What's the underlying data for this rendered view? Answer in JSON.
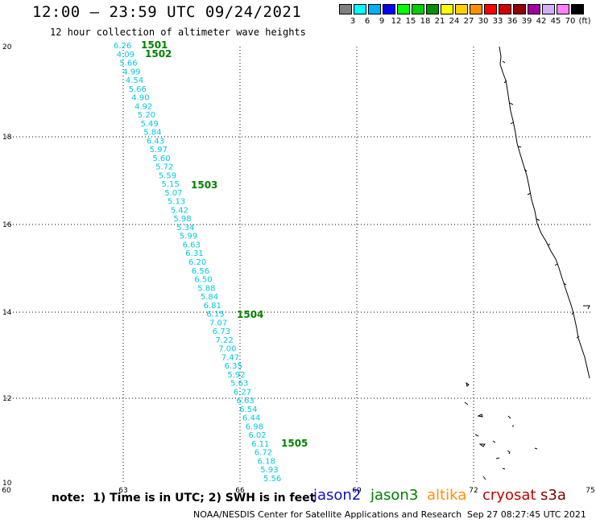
{
  "title": "12:00 – 23:59 UTC 09/24/2021",
  "subtitle": "12 hour collection of altimeter wave heights",
  "legend": {
    "labels": [
      "3",
      "6",
      "9",
      "12",
      "15",
      "18",
      "21",
      "24",
      "27",
      "30",
      "33",
      "36",
      "39",
      "42",
      "45",
      "70",
      "(ft)"
    ],
    "colors": [
      "#808080",
      "#00ffff",
      "#00b0ff",
      "#0000ff",
      "#00ff00",
      "#00d000",
      "#009000",
      "#ffff00",
      "#ffd000",
      "#ff9000",
      "#ff0000",
      "#d00000",
      "#900000",
      "#a000a0",
      "#d0b0ff",
      "#ff80ff",
      "#000000"
    ]
  },
  "axes": {
    "x_ticks": [
      "60",
      "63",
      "66",
      "69",
      "72",
      "75"
    ],
    "y_ticks": [
      "20",
      "18",
      "16",
      "14",
      "12",
      "10"
    ]
  },
  "track": {
    "color": "#00c8e0",
    "swh_values": [
      "6.26",
      "4.09",
      "5.66",
      "4.99",
      "4.54",
      "5.66",
      "4.90",
      "4.92",
      "5.20",
      "5.49",
      "5.84",
      "6.43",
      "5.97",
      "5.60",
      "5.72",
      "5.59",
      "5.15",
      "5.07",
      "5.13",
      "5.42",
      "5.98",
      "5.34",
      "5.99",
      "6.63",
      "6.31",
      "6.20",
      "6.56",
      "6.50",
      "5.88",
      "5.84",
      "6.81",
      "6.15",
      "7.07",
      "6.73",
      "7.22",
      "7.00",
      "7.47",
      "6.35",
      "5.92",
      "5.63",
      "6.27",
      "6.63",
      "6.54",
      "6.44",
      "6.98",
      "6.02",
      "6.11",
      "6.72",
      "6.18",
      "5.93",
      "5.56"
    ]
  },
  "time_markers": {
    "color": "#008000",
    "items": [
      "1501",
      "1502",
      "1503",
      "1504",
      "1505"
    ]
  },
  "note": "note:  1) Time is in UTC; 2) SWH is in feet",
  "satellites": [
    {
      "name": "jason2",
      "color": "#1010d0"
    },
    {
      "name": "jason3",
      "color": "#008000"
    },
    {
      "name": "altika",
      "color": "#ff9000"
    },
    {
      "name": "cryosat",
      "color": "#c00000"
    },
    {
      "name": "s3a",
      "color": "#800000"
    }
  ],
  "credit": "NOAA/NESDIS Center for Satellite Applications and Research",
  "timestamp": "Sep 27 08:27:45 UTC 2021"
}
